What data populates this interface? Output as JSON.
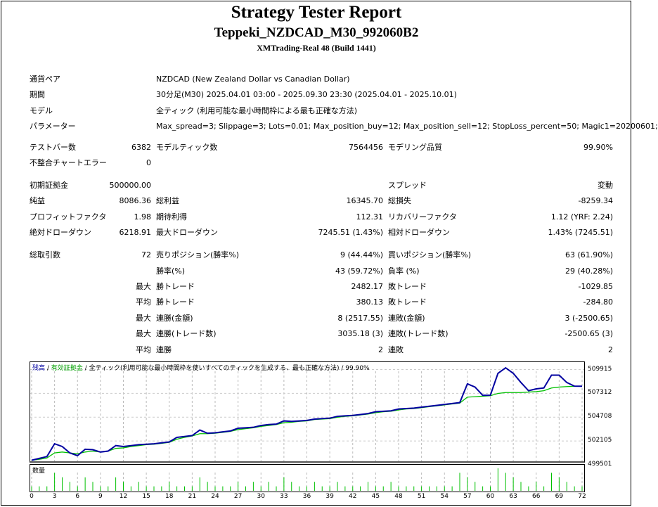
{
  "header": {
    "title": "Strategy Tester Report",
    "subtitle": "Teppeki_NZDCAD_M30_992060B2",
    "server": "XMTrading-Real 48 (Build 1441)"
  },
  "info": [
    {
      "label": "通貨ペア",
      "value": "NZDCAD (New Zealand Dollar vs Canadian Dollar)"
    },
    {
      "label": "期間",
      "value": "30分足(M30) 2025.04.01 03:00 - 2025.09.30 23:30 (2025.04.01 - 2025.10.01)"
    },
    {
      "label": "モデル",
      "value": "全ティック (利用可能な最小時間枠による最も正確な方法)"
    },
    {
      "label": "パラメーター",
      "value": "Max_spread=3; Slippage=3; Lots=0.01; Max_position_buy=12; Max_position_sell=12; StopLoss_percent=50; Magic1=20200601;"
    }
  ],
  "stats": {
    "bars_label": "テストバー数",
    "bars": "6382",
    "ticks_label": "モデルティック数",
    "ticks": "7564456",
    "quality_label": "モデリング品質",
    "quality": "99.90%",
    "errors_label": "不整合チャートエラー",
    "errors": "0",
    "deposit_label": "初期証拠金",
    "deposit": "500000.00",
    "spread_label": "スプレッド",
    "spread": "変動",
    "net_label": "純益",
    "net": "8086.36",
    "gross_profit_label": "総利益",
    "gross_profit": "16345.70",
    "gross_loss_label": "総損失",
    "gross_loss": "-8259.34",
    "pf_label": "プロフィットファクタ",
    "pf": "1.98",
    "expected_label": "期待利得",
    "expected": "112.31",
    "recovery_label": "リカバリーファクタ",
    "recovery": "1.12 (YRF: 2.24)",
    "abs_dd_label": "絶対ドローダウン",
    "abs_dd": "6218.91",
    "max_dd_label": "最大ドローダウン",
    "max_dd": "7245.51 (1.43%)",
    "rel_dd_label": "相対ドローダウン",
    "rel_dd": "1.43% (7245.51)",
    "trades_label": "総取引数",
    "trades": "72",
    "short_label": "売りポジション(勝率%)",
    "short": "9 (44.44%)",
    "long_label": "買いポジション(勝率%)",
    "long": "63 (61.90%)",
    "win_label": "勝率(%)",
    "win": "43 (59.72%)",
    "loss_label": "負率 (%)",
    "loss": "29 (40.28%)",
    "max": "最大",
    "avg": "平均",
    "lw_label": "勝トレード",
    "lw": "2482.17",
    "ll_label": "敗トレード",
    "ll": "-1029.85",
    "aw_label": "勝トレード",
    "aw": "380.13",
    "al_label": "敗トレード",
    "al": "-284.80",
    "mcw_label": "連勝(金額)",
    "mcw": "8 (2517.55)",
    "mcl_label": "連敗(金額)",
    "mcl": "3 (-2500.65)",
    "mcp_label": "連勝(トレード数)",
    "mcp": "3035.18 (3)",
    "mcpl_label": "連敗(トレード数)",
    "mcpl": "-2500.65 (3)",
    "acw_label": "連勝",
    "acw": "2",
    "acl_label": "連敗",
    "acl": "2"
  },
  "chart_data": {
    "type": "line",
    "legend": {
      "balance": "残高",
      "equity": "有効証拠金",
      "sep": " / ",
      "model": "全ティック(利用可能な最小時間枠を使いすべてのティックを生成する、最も正確な方法)",
      "quality": "99.90%"
    },
    "volume_label": "数量",
    "yticks": [
      "509915",
      "507312",
      "504708",
      "502105",
      "499501"
    ],
    "ylim": [
      499501,
      510800
    ],
    "xticks": [
      "0",
      "3",
      "6",
      "9",
      "12",
      "15",
      "18",
      "21",
      "24",
      "27",
      "30",
      "33",
      "36",
      "39",
      "42",
      "45",
      "48",
      "51",
      "54",
      "57",
      "60",
      "63",
      "66",
      "69",
      "72"
    ],
    "series": [
      {
        "name": "残高",
        "color": "#0000a0",
        "values": [
          500000,
          500200,
          500400,
          501800,
          501500,
          500800,
          500500,
          501200,
          501150,
          500900,
          501000,
          501600,
          501500,
          501600,
          501700,
          501750,
          501800,
          501900,
          502000,
          502500,
          502600,
          502700,
          503300,
          502950,
          503000,
          503100,
          503200,
          503500,
          503550,
          503600,
          503800,
          503900,
          503950,
          504300,
          504250,
          504300,
          504350,
          504500,
          504550,
          504600,
          504800,
          504850,
          504900,
          505000,
          505100,
          505300,
          505350,
          505400,
          505600,
          505650,
          505700,
          505800,
          505900,
          506000,
          506100,
          506200,
          506300,
          508350,
          508000,
          507100,
          507100,
          509500,
          510100,
          509500,
          508500,
          507600,
          507800,
          507900,
          509300,
          509300,
          508500,
          508100,
          508086
        ]
      },
      {
        "name": "有効証拠金",
        "color": "#00c000",
        "values": [
          500000,
          500100,
          500250,
          500800,
          500900,
          500800,
          500700,
          500900,
          501000,
          500900,
          501000,
          501300,
          501350,
          501500,
          501600,
          501700,
          501750,
          501850,
          501950,
          502300,
          502500,
          502650,
          502900,
          502900,
          502950,
          503050,
          503150,
          503350,
          503450,
          503550,
          503700,
          503800,
          503900,
          504100,
          504150,
          504250,
          504300,
          504450,
          504500,
          504550,
          504700,
          504800,
          504850,
          504950,
          505050,
          505200,
          505300,
          505350,
          505500,
          505600,
          505650,
          505750,
          505850,
          505950,
          506050,
          506150,
          506250,
          506900,
          506950,
          507000,
          507050,
          507300,
          507400,
          507400,
          507400,
          507450,
          507500,
          507600,
          507900,
          508000,
          508050,
          508080,
          508086
        ]
      }
    ],
    "volume": [
      1,
      1,
      1,
      4,
      3,
      2,
      1,
      3,
      2,
      1,
      1,
      3,
      2,
      1,
      2,
      1,
      1,
      1,
      2,
      1,
      1,
      1,
      3,
      2,
      1,
      1,
      1,
      2,
      1,
      2,
      1,
      2,
      1,
      3,
      2,
      1,
      1,
      2,
      1,
      1,
      2,
      1,
      1,
      1,
      2,
      1,
      1,
      2,
      1,
      1,
      1,
      1,
      1,
      1,
      1,
      1,
      4,
      3,
      2,
      1,
      1,
      5,
      4,
      3,
      2,
      1,
      2,
      1,
      4,
      3,
      2,
      1,
      1
    ],
    "colors": {
      "balance": "#0000a0",
      "equity": "#00c000",
      "volume": "#00c000"
    }
  }
}
